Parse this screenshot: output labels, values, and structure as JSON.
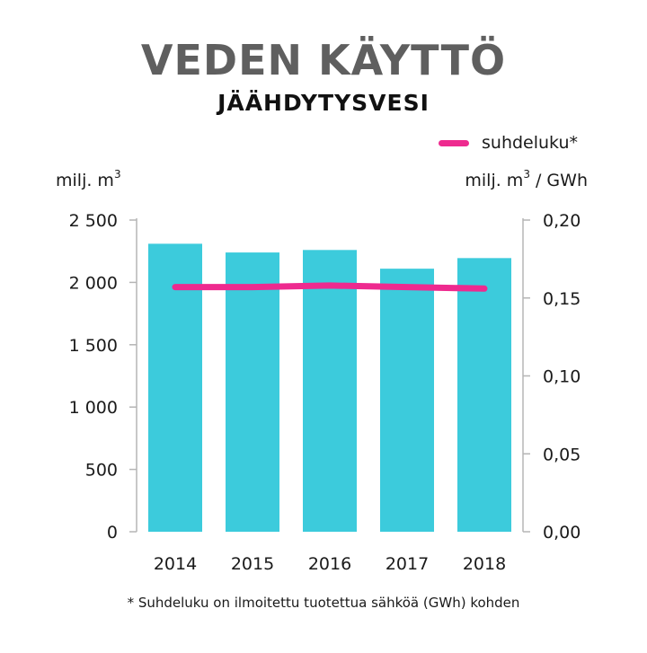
{
  "chart_data": {
    "type": "bar",
    "title": "VEDEN KÄYTTÖ",
    "subtitle": "JÄÄHDYTYSVESI",
    "categories": [
      "2014",
      "2015",
      "2016",
      "2017",
      "2018"
    ],
    "series": [
      {
        "type": "bar",
        "axis": "left",
        "color": "#3ccbdc",
        "values": [
          2310,
          2240,
          2260,
          2110,
          2195
        ]
      },
      {
        "type": "line",
        "axis": "right",
        "name": "suhdeluku*",
        "color": "#ee2a8f",
        "values": [
          0.157,
          0.157,
          0.158,
          0.157,
          0.156
        ]
      }
    ],
    "ylabel_left": "milj. m",
    "ylabel_left_sup": "3",
    "ylabel_right": "milj. m",
    "ylabel_right_sup": "3",
    "ylabel_right_suffix": " / GWh",
    "ylim_left": [
      0,
      2500
    ],
    "ylim_right": [
      0,
      0.2
    ],
    "yticks_left": [
      0,
      500,
      1000,
      1500,
      2000,
      2500
    ],
    "yticks_left_labels": [
      "0",
      "500",
      "1 000",
      "1 500",
      "2 000",
      "2 500"
    ],
    "yticks_right": [
      0,
      0.05,
      0.1,
      0.15,
      0.2
    ],
    "yticks_right_labels": [
      "0,00",
      "0,05",
      "0,10",
      "0,15",
      "0,20"
    ],
    "grid": false,
    "legend_position": "top-right",
    "footnote": "* Suhdeluku on ilmoitettu tuotettua sähköä (GWh) kohden"
  }
}
